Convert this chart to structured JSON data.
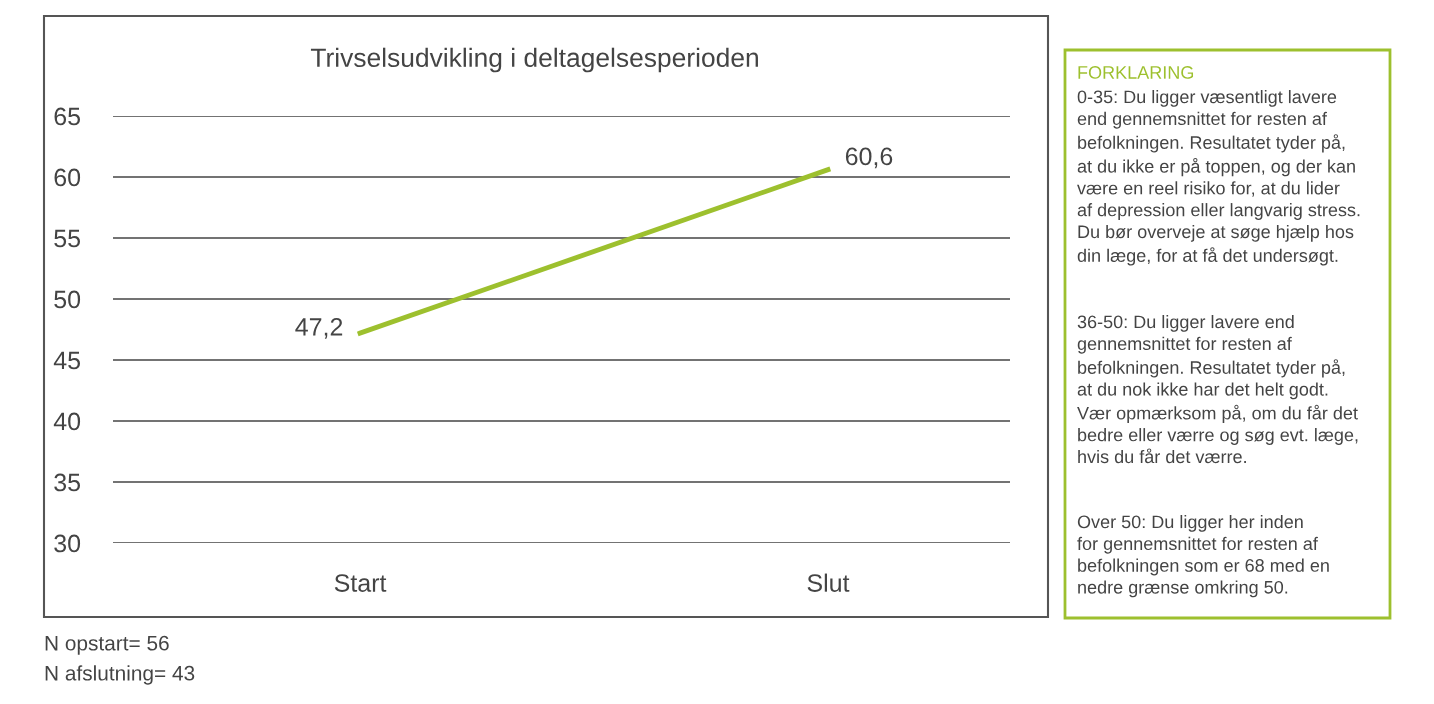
{
  "chart_data": [
    {
      "type": "line",
      "title": "Trivselsudvikling i deltagelsesperioden",
      "categories": [
        "Start",
        "Slut"
      ],
      "series": [
        {
          "color": "#9dc02e",
          "values": [
            47.2,
            60.6
          ],
          "value_labels": [
            "47,2",
            "60,6"
          ]
        }
      ],
      "ylim": [
        30,
        65
      ],
      "yticks": [
        30,
        35,
        40,
        45,
        50,
        55,
        60,
        65
      ],
      "grid": "y",
      "legend": false,
      "marker": "none",
      "line_style": "solid",
      "annotations": [
        "N opstart= 56",
        "N afslutning= 43"
      ]
    },
    {
      "type": "other",
      "title": "FORKLARING",
      "annotations": [
        "0-35: Du ligger væsentligt lavere\nend gennemsnittet for resten af\nbefolkningen. Resultatet tyder på,\nat du ikke er på toppen, og der kan\nvære en reel risiko for, at du lider\naf depression eller langvarig stress.\nDu bør overveje at søge hjælp hos\ndin læge, for at få det undersøgt.",
        "36-50: Du ligger lavere end\ngennemsnittet for resten af\nbefolkningen. Resultatet tyder på,\nat du nok ikke har det helt godt.\nVær opmærksom på, om du får det\nbedre eller værre og søg evt. læge,\nhvis du får det værre.",
        "Over 50: Du ligger her inden\nfor gennemsnittet for resten af\nbefolkningen som er 68 med en\nnedre grænse omkring 50."
      ]
    }
  ]
}
